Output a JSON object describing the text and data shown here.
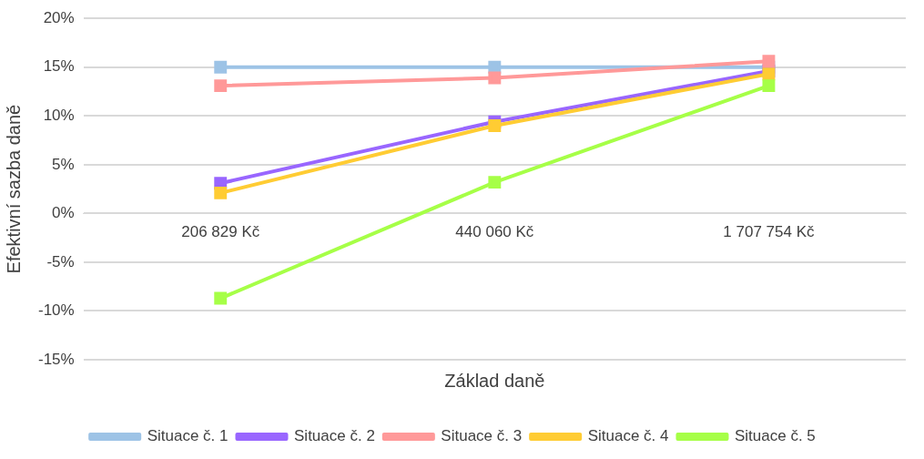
{
  "chart_data": {
    "type": "line",
    "xlabel": "Základ daně",
    "ylabel": "Efektivní sazba daně",
    "categories": [
      "206 829 Kč",
      "440 060 Kč",
      "1 707 754 Kč"
    ],
    "series": [
      {
        "name": "Situace č. 1",
        "color": "#9dc3e6",
        "values": [
          15,
          15,
          15
        ]
      },
      {
        "name": "Situace č. 2",
        "color": "#9966ff",
        "values": [
          3.1,
          9.4,
          14.6
        ]
      },
      {
        "name": "Situace č. 3",
        "color": "#ff9999",
        "values": [
          13.1,
          13.9,
          15.6
        ]
      },
      {
        "name": "Situace č. 4",
        "color": "#ffcc33",
        "values": [
          2.1,
          9,
          14.3
        ]
      },
      {
        "name": "Situace č. 5",
        "color": "#a6ff47",
        "values": [
          -8.7,
          3.2,
          13.1
        ]
      }
    ],
    "ylim": [
      -15,
      20
    ],
    "yticks": [
      {
        "value": -15,
        "label": "-15%"
      },
      {
        "value": -10,
        "label": "-10%"
      },
      {
        "value": -5,
        "label": "-5%"
      },
      {
        "value": 0,
        "label": "0%"
      },
      {
        "value": 5,
        "label": "5%"
      },
      {
        "value": 10,
        "label": "10%"
      },
      {
        "value": 15,
        "label": "15%"
      },
      {
        "value": 20,
        "label": "20%"
      }
    ],
    "grid": "y",
    "legend": "bottom",
    "marker": "square",
    "line_style": "solid"
  }
}
